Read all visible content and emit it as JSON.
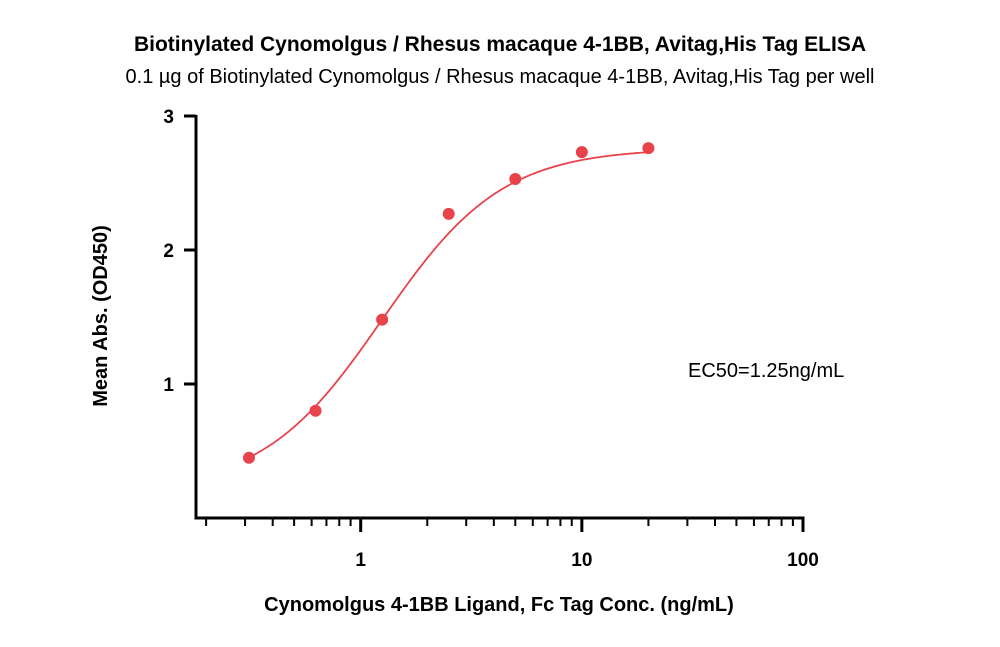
{
  "chart_data": {
    "type": "scatter",
    "title": "Biotinylated Cynomolgus / Rhesus macaque 4-1BB, Avitag,His Tag ELISA",
    "subtitle": "0.1 µg of Biotinylated Cynomolgus / Rhesus macaque 4-1BB, Avitag,His Tag per well",
    "xlabel": "Cynomolgus 4-1BB Ligand, Fc Tag Conc. (ng/mL)",
    "ylabel": "Mean Abs. (OD450)",
    "x_scale": "log",
    "xlim": [
      0.18,
      100
    ],
    "ylim": [
      0,
      3
    ],
    "x_ticks": [
      1,
      10,
      100
    ],
    "x_tick_labels": [
      "1",
      "10",
      "100"
    ],
    "y_ticks": [
      1,
      2,
      3
    ],
    "y_tick_labels": [
      "1",
      "2",
      "3"
    ],
    "grid": false,
    "color": "#e8434b",
    "series": [
      {
        "x": [
          0.3125,
          0.625,
          1.25,
          2.5,
          5,
          10,
          20
        ],
        "y": [
          0.45,
          0.8,
          1.48,
          2.27,
          2.53,
          2.73,
          2.76
        ]
      }
    ],
    "fit": {
      "model": "4PL",
      "bottom": 0.2,
      "top": 2.76,
      "ec50": 1.25,
      "hill": 1.6
    },
    "annotation": "EC50=1.25ng/mL"
  }
}
